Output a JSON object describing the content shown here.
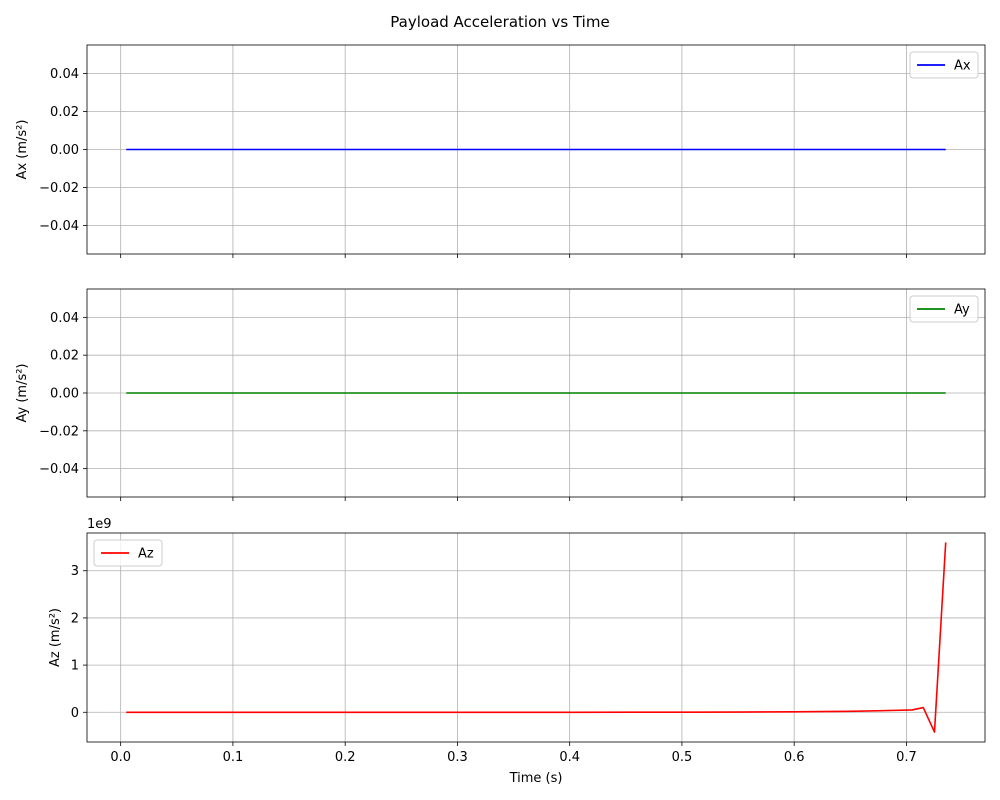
{
  "title": "Payload Acceleration vs Time",
  "xlabel": "Time (s)",
  "colors": {
    "Ax": "#0000ff",
    "Ay": "#008000",
    "Az": "#ff0000"
  },
  "chart_data": [
    {
      "type": "line",
      "ylabel": "Ax (m/s²)",
      "legend": "top-right",
      "grid": true,
      "xlim": [
        -0.03,
        0.77
      ],
      "ylim": [
        -0.055,
        0.055
      ],
      "xticks": [
        0.0,
        0.1,
        0.2,
        0.3,
        0.4,
        0.5,
        0.6,
        0.7
      ],
      "xticklabels": [],
      "yticks": [
        -0.04,
        -0.02,
        0.0,
        0.02,
        0.04
      ],
      "yticklabels": [
        "−0.04",
        "−0.02",
        "0.00",
        "0.02",
        "0.04"
      ],
      "offset_text": "",
      "series": [
        {
          "name": "Ax",
          "color": "#0000ff",
          "x": [
            0.005,
            0.735
          ],
          "y": [
            0,
            0
          ]
        }
      ]
    },
    {
      "type": "line",
      "ylabel": "Ay (m/s²)",
      "legend": "top-right",
      "grid": true,
      "xlim": [
        -0.03,
        0.77
      ],
      "ylim": [
        -0.055,
        0.055
      ],
      "xticks": [
        0.0,
        0.1,
        0.2,
        0.3,
        0.4,
        0.5,
        0.6,
        0.7
      ],
      "xticklabels": [],
      "yticks": [
        -0.04,
        -0.02,
        0.0,
        0.02,
        0.04
      ],
      "yticklabels": [
        "−0.04",
        "−0.02",
        "0.00",
        "0.02",
        "0.04"
      ],
      "offset_text": "",
      "series": [
        {
          "name": "Ay",
          "color": "#008000",
          "x": [
            0.005,
            0.735
          ],
          "y": [
            0,
            0
          ]
        }
      ]
    },
    {
      "type": "line",
      "ylabel": "Az (m/s²)",
      "legend": "top-left",
      "grid": true,
      "xlim": [
        -0.03,
        0.77
      ],
      "ylim": [
        -0.63,
        3.8
      ],
      "xticks": [
        0.0,
        0.1,
        0.2,
        0.3,
        0.4,
        0.5,
        0.6,
        0.7
      ],
      "xticklabels": [
        "0.0",
        "0.1",
        "0.2",
        "0.3",
        "0.4",
        "0.5",
        "0.6",
        "0.7"
      ],
      "yticks": [
        0,
        1,
        2,
        3
      ],
      "yticklabels": [
        "0",
        "1",
        "2",
        "3"
      ],
      "offset_text": "1e9",
      "y_unit_multiplier": 1000000000,
      "series": [
        {
          "name": "Az",
          "color": "#ff0000",
          "x": [
            0.005,
            0.1,
            0.2,
            0.3,
            0.4,
            0.5,
            0.55,
            0.6,
            0.65,
            0.68,
            0.705,
            0.715,
            0.725,
            0.735
          ],
          "y": [
            0,
            0,
            0,
            0,
            0,
            0.002,
            0.005,
            0.01,
            0.02,
            0.035,
            0.05,
            0.1,
            -0.42,
            3.6
          ]
        }
      ]
    }
  ]
}
